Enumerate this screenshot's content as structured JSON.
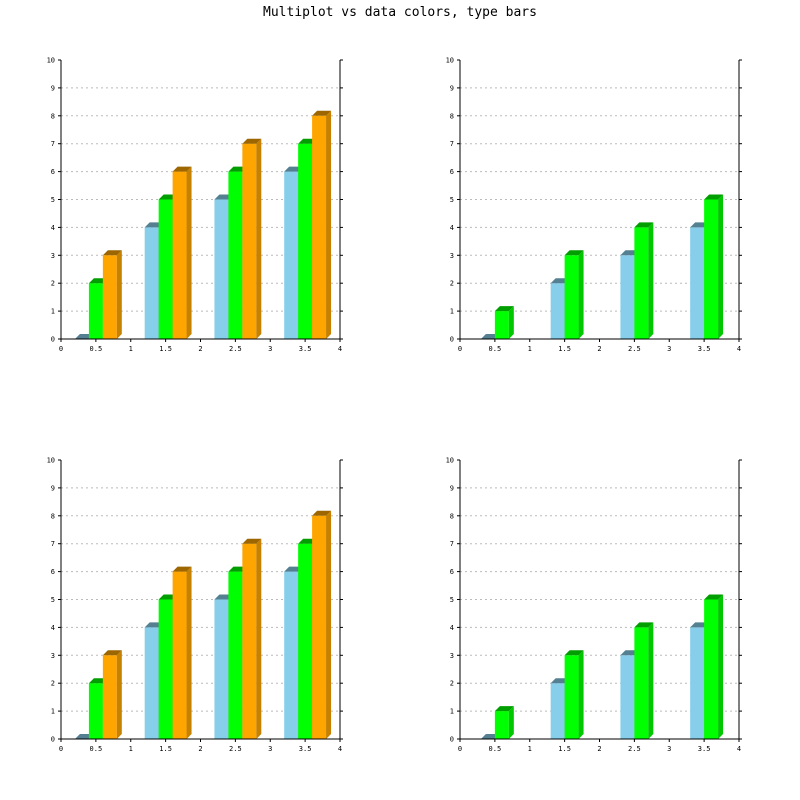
{
  "title": "Multiplot vs data colors, type bars",
  "chart_data": [
    {
      "type": "bar",
      "x": [
        0.5,
        1.5,
        2.5,
        3.5
      ],
      "xlim": [
        0,
        4
      ],
      "xticks": [
        "0",
        "0.5",
        "1",
        "1.5",
        "2",
        "2.5",
        "3",
        "3.5",
        "4"
      ],
      "ylim": [
        0,
        10
      ],
      "yticks": [
        "0",
        "1",
        "2",
        "3",
        "4",
        "5",
        "6",
        "7",
        "8",
        "9",
        "10"
      ],
      "grid": true,
      "series": [
        {
          "values": [
            0,
            4,
            5,
            6
          ],
          "color": "#87ceeb"
        },
        {
          "values": [
            2,
            5,
            6,
            7
          ],
          "color": "#00ff00"
        },
        {
          "values": [
            3,
            6,
            7,
            8
          ],
          "color": "#ffa500"
        }
      ]
    },
    {
      "type": "bar",
      "x": [
        0.5,
        1.5,
        2.5,
        3.5
      ],
      "xlim": [
        0,
        4
      ],
      "xticks": [
        "0",
        "0.5",
        "1",
        "1.5",
        "2",
        "2.5",
        "3",
        "3.5",
        "4"
      ],
      "ylim": [
        0,
        10
      ],
      "yticks": [
        "0",
        "1",
        "2",
        "3",
        "4",
        "5",
        "6",
        "7",
        "8",
        "9",
        "10"
      ],
      "grid": true,
      "series": [
        {
          "values": [
            0,
            2,
            3,
            4
          ],
          "color": "#87ceeb"
        },
        {
          "values": [
            1,
            3,
            4,
            5
          ],
          "color": "#00ff00"
        }
      ]
    },
    {
      "type": "bar",
      "x": [
        0.5,
        1.5,
        2.5,
        3.5
      ],
      "xlim": [
        0,
        4
      ],
      "xticks": [
        "0",
        "0.5",
        "1",
        "1.5",
        "2",
        "2.5",
        "3",
        "3.5",
        "4"
      ],
      "ylim": [
        0,
        10
      ],
      "yticks": [
        "0",
        "1",
        "2",
        "3",
        "4",
        "5",
        "6",
        "7",
        "8",
        "9",
        "10"
      ],
      "grid": true,
      "series": [
        {
          "values": [
            0,
            4,
            5,
            6
          ],
          "color": "#87ceeb"
        },
        {
          "values": [
            2,
            5,
            6,
            7
          ],
          "color": "#00ff00"
        },
        {
          "values": [
            3,
            6,
            7,
            8
          ],
          "color": "#ffa500"
        }
      ]
    },
    {
      "type": "bar",
      "x": [
        0.5,
        1.5,
        2.5,
        3.5
      ],
      "xlim": [
        0,
        4
      ],
      "xticks": [
        "0",
        "0.5",
        "1",
        "1.5",
        "2",
        "2.5",
        "3",
        "3.5",
        "4"
      ],
      "ylim": [
        0,
        10
      ],
      "yticks": [
        "0",
        "1",
        "2",
        "3",
        "4",
        "5",
        "6",
        "7",
        "8",
        "9",
        "10"
      ],
      "grid": true,
      "series": [
        {
          "values": [
            0,
            2,
            3,
            4
          ],
          "color": "#87ceeb"
        },
        {
          "values": [
            1,
            3,
            4,
            5
          ],
          "color": "#00ff00"
        }
      ]
    }
  ]
}
